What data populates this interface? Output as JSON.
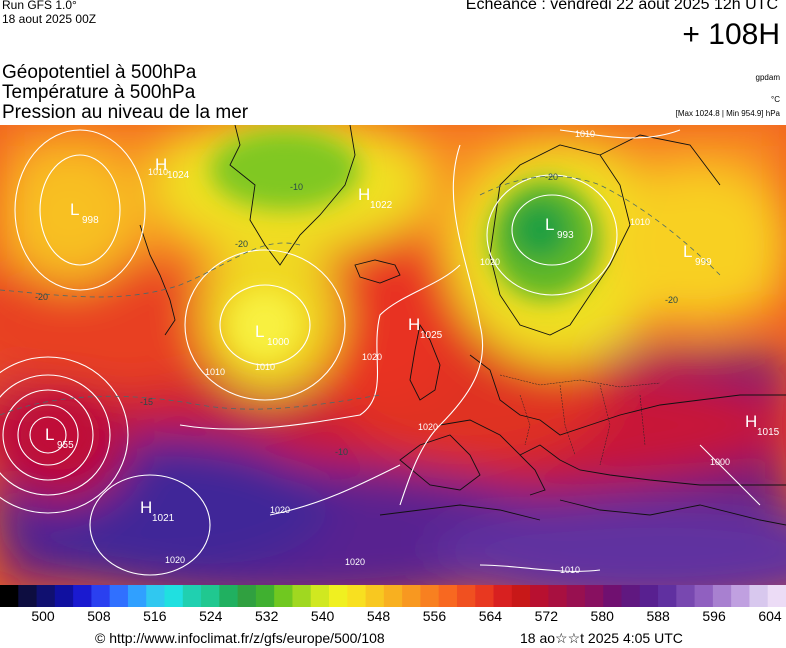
{
  "header": {
    "run_line1": "Run GFS 1.0°",
    "run_line2": "18 aout 2025 00Z",
    "echeance": "Echéance : vendredi 22 aout 2025 12h UTC",
    "forecast_hour": "+ 108H"
  },
  "titles": {
    "line1": "Géopotentiel à 500hPa",
    "line2": "Température à 500hPa",
    "line3": "Pression au niveau de la mer"
  },
  "units": {
    "geopotential": "gpdam",
    "temperature": "°C",
    "pressure": "[Max 1024.8 | Min 954.9] hPa"
  },
  "map": {
    "pressure_centers": [
      {
        "type": "H",
        "value": "1024"
      },
      {
        "type": "L",
        "value": "998"
      },
      {
        "type": "H",
        "value": "1022"
      },
      {
        "type": "L",
        "value": "1000"
      },
      {
        "type": "H",
        "value": "1025"
      },
      {
        "type": "L",
        "value": "993"
      },
      {
        "type": "L",
        "value": "999"
      },
      {
        "type": "L",
        "value": "955"
      },
      {
        "type": "H",
        "value": "1021"
      },
      {
        "type": "H",
        "value": "1015"
      }
    ],
    "isobar_labels": [
      "1010",
      "1010",
      "1010",
      "1020",
      "1020",
      "1020",
      "1020",
      "1010",
      "1000",
      "1010",
      "1010",
      "1020",
      "1020"
    ],
    "temperature_labels": [
      "-20",
      "-20",
      "-20",
      "-20",
      "-15",
      "-10",
      "-10"
    ]
  },
  "legend": {
    "colors": [
      "#000000",
      "#0d0d40",
      "#101070",
      "#1010a0",
      "#1a1ad0",
      "#2a40f0",
      "#3070ff",
      "#30a0ff",
      "#30c8f0",
      "#20e0e0",
      "#20d0b0",
      "#20c890",
      "#20b060",
      "#30a040",
      "#40b030",
      "#70c820",
      "#a0d820",
      "#d0e820",
      "#f0f020",
      "#f8e020",
      "#f8c820",
      "#f8b020",
      "#f89820",
      "#f88020",
      "#f86820",
      "#f05020",
      "#e83820",
      "#d82020",
      "#c81818",
      "#b81030",
      "#a81040",
      "#981050",
      "#881060",
      "#701070",
      "#601880",
      "#582090",
      "#6030a0",
      "#7848b0",
      "#9060c0",
      "#a880d0",
      "#c0a0e0",
      "#d8c8ee",
      "#ecdcf6"
    ],
    "tick_labels": [
      "500",
      "508",
      "516",
      "524",
      "532",
      "540",
      "548",
      "556",
      "564",
      "572",
      "580",
      "588",
      "596",
      "604"
    ]
  },
  "footer": {
    "source": "© http://www.infoclimat.fr/z/gfs/europe/500/108",
    "date": "18 ao☆☆t 2025  4:05 UTC"
  }
}
